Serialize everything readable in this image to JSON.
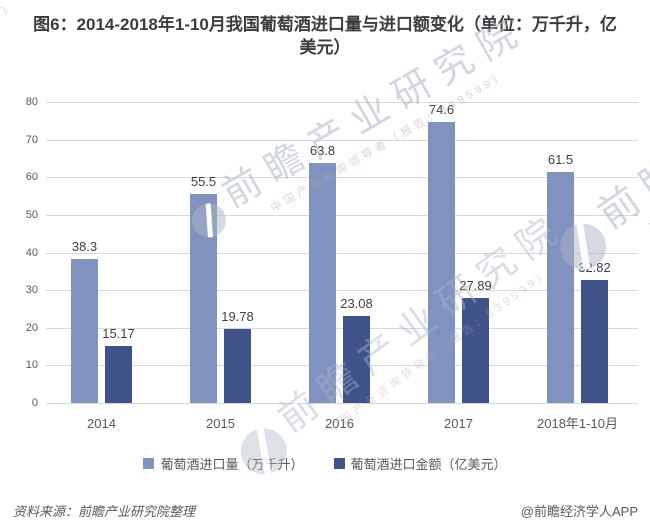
{
  "title": "图6：2014-2018年1-10月我国葡萄酒进口量与进口额变化（单位：万千升，亿美元）",
  "chart_data": {
    "type": "bar",
    "categories": [
      "2014",
      "2015",
      "2016",
      "2017",
      "2018年1-10月"
    ],
    "series": [
      {
        "name": "葡萄酒进口量（万千升）",
        "color": "#8093c0",
        "values": [
          38.3,
          55.5,
          63.8,
          74.6,
          61.5
        ]
      },
      {
        "name": "葡萄酒进口金额（亿美元）",
        "color": "#3f538a",
        "values": [
          15.17,
          19.78,
          23.08,
          27.89,
          32.82
        ]
      }
    ],
    "ylim": [
      0,
      80
    ],
    "yticks": [
      0,
      10,
      20,
      30,
      40,
      50,
      60,
      70,
      80
    ],
    "grid": "horizontal",
    "legend_position": "bottom",
    "data_labels": true
  },
  "footer": {
    "source": "资料来源：前瞻产业研究院整理",
    "attribution": "@前瞻经济学人APP"
  },
  "watermark": {
    "brand": "前瞻产业研究院",
    "tagline": "中国产业咨询领导者（报告：839599）"
  },
  "colors": {
    "grid": "#d9d9d9",
    "tick_text": "#595959",
    "value_label": "#3f3f3f",
    "title_text": "#3c3c3c"
  }
}
